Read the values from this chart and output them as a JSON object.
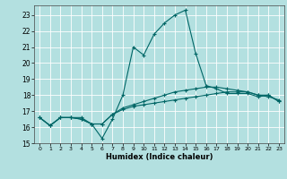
{
  "title": "",
  "xlabel": "Humidex (Indice chaleur)",
  "background_color": "#b3e0e0",
  "grid_color": "#ffffff",
  "line_color": "#006666",
  "xlim": [
    -0.5,
    23.5
  ],
  "ylim": [
    15,
    23.6
  ],
  "yticks": [
    15,
    16,
    17,
    18,
    19,
    20,
    21,
    22,
    23
  ],
  "xticks": [
    0,
    1,
    2,
    3,
    4,
    5,
    6,
    7,
    8,
    9,
    10,
    11,
    12,
    13,
    14,
    15,
    16,
    17,
    18,
    19,
    20,
    21,
    22,
    23
  ],
  "line1_x": [
    0,
    1,
    2,
    3,
    4,
    5,
    6,
    7,
    8,
    9,
    10,
    11,
    12,
    13,
    14,
    15,
    16,
    17,
    18,
    19,
    20,
    21,
    22,
    23
  ],
  "line1_y": [
    16.6,
    16.1,
    16.6,
    16.6,
    16.6,
    16.2,
    15.3,
    16.5,
    18.0,
    21.0,
    20.5,
    21.8,
    22.5,
    23.0,
    23.3,
    20.6,
    18.6,
    18.4,
    18.1,
    18.1,
    18.1,
    17.9,
    18.0,
    17.6
  ],
  "line2_x": [
    0,
    1,
    2,
    3,
    4,
    5,
    6,
    7,
    8,
    9,
    10,
    11,
    12,
    13,
    14,
    15,
    16,
    17,
    18,
    19,
    20,
    21,
    22,
    23
  ],
  "line2_y": [
    16.6,
    16.1,
    16.6,
    16.6,
    16.5,
    16.2,
    16.2,
    16.8,
    17.1,
    17.3,
    17.4,
    17.5,
    17.6,
    17.7,
    17.8,
    17.9,
    18.0,
    18.1,
    18.2,
    18.2,
    18.2,
    18.0,
    18.0,
    17.6
  ],
  "line3_x": [
    0,
    1,
    2,
    3,
    4,
    5,
    6,
    7,
    8,
    9,
    10,
    11,
    12,
    13,
    14,
    15,
    16,
    17,
    18,
    19,
    20,
    21,
    22,
    23
  ],
  "line3_y": [
    16.6,
    16.1,
    16.6,
    16.6,
    16.5,
    16.2,
    16.2,
    16.8,
    17.2,
    17.4,
    17.6,
    17.8,
    18.0,
    18.2,
    18.3,
    18.4,
    18.5,
    18.5,
    18.4,
    18.3,
    18.2,
    18.0,
    17.9,
    17.7
  ]
}
